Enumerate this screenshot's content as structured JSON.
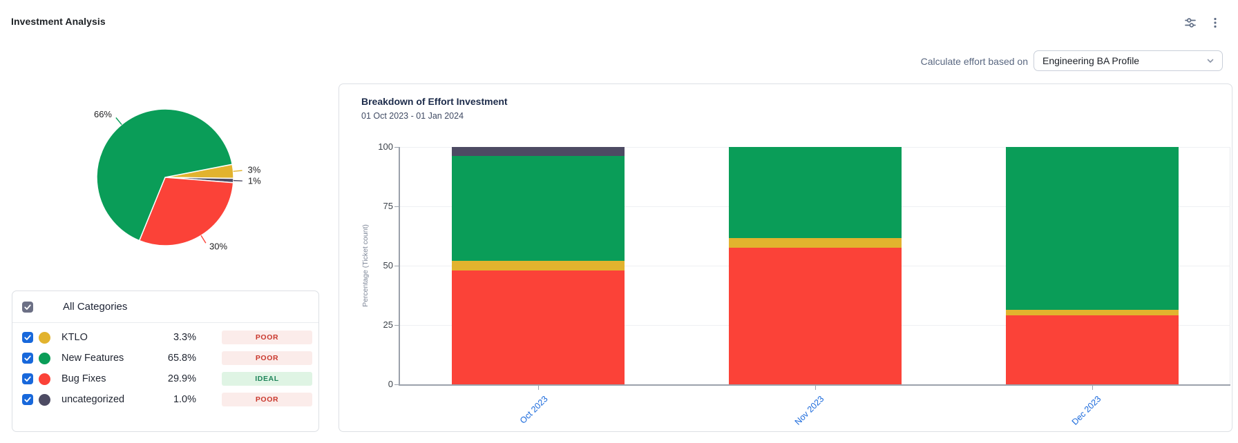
{
  "header": {
    "title": "Investment Analysis"
  },
  "toolbar": {
    "icons": [
      {
        "name": "filter-sliders-icon"
      },
      {
        "name": "kebab-menu-icon"
      }
    ]
  },
  "controls": {
    "label": "Calculate effort based on",
    "profile_dropdown": {
      "value": "Engineering BA Profile"
    }
  },
  "categories": {
    "select_all_label": "All Categories",
    "select_all_checked": true,
    "checkbox_color": "#1868db",
    "items": [
      {
        "name": "KTLO",
        "percent": "3.3%",
        "status": "POOR",
        "color": "#e2b32e",
        "checked": true
      },
      {
        "name": "New Features",
        "percent": "65.8%",
        "status": "POOR",
        "color": "#0a9d58",
        "checked": true
      },
      {
        "name": "Bug Fixes",
        "percent": "29.9%",
        "status": "IDEAL",
        "color": "#fb4238",
        "checked": true
      },
      {
        "name": "uncategorized",
        "percent": "1.0%",
        "status": "POOR",
        "color": "#4d4b63",
        "checked": true
      }
    ],
    "status_colors": {
      "POOR": {
        "bg": "#fbecea",
        "text": "#c9372c"
      },
      "IDEAL": {
        "bg": "#dff4e4",
        "text": "#1f845a"
      }
    }
  },
  "chart_data": [
    {
      "type": "pie",
      "start_angle_deg": 79,
      "slices": [
        {
          "name": "KTLO",
          "value": 3.3,
          "label": "3%",
          "color": "#e2b32e"
        },
        {
          "name": "uncategorized",
          "value": 1.0,
          "label": "1%",
          "color": "#4d4b63"
        },
        {
          "name": "Bug Fixes",
          "value": 29.9,
          "label": "30%",
          "color": "#fb4238"
        },
        {
          "name": "New Features",
          "value": 65.8,
          "label": "66%",
          "color": "#0a9d58"
        }
      ]
    },
    {
      "type": "bar",
      "stacked": true,
      "title": "Breakdown of Effort Investment",
      "subtitle": "01 Oct 2023 - 01 Jan 2024",
      "categories": [
        "Oct 2023",
        "Nov 2023",
        "Dec 2023"
      ],
      "series": [
        {
          "name": "Bug Fixes",
          "color": "#fb4238",
          "values": [
            48,
            57.5,
            29
          ]
        },
        {
          "name": "KTLO",
          "color": "#e2b32e",
          "values": [
            4,
            4,
            2.5
          ]
        },
        {
          "name": "New Features",
          "color": "#0a9d58",
          "values": [
            44.3,
            38.5,
            68.5
          ]
        },
        {
          "name": "uncategorized",
          "color": "#4d4b63",
          "values": [
            3.7,
            0,
            0
          ]
        }
      ],
      "ylabel": "Percentage (Ticket count)",
      "yticks": [
        0,
        25,
        50,
        75,
        100
      ],
      "ylim": [
        0,
        100
      ],
      "grid": true,
      "xlabel_color": "#1868db",
      "legend": "none"
    }
  ]
}
